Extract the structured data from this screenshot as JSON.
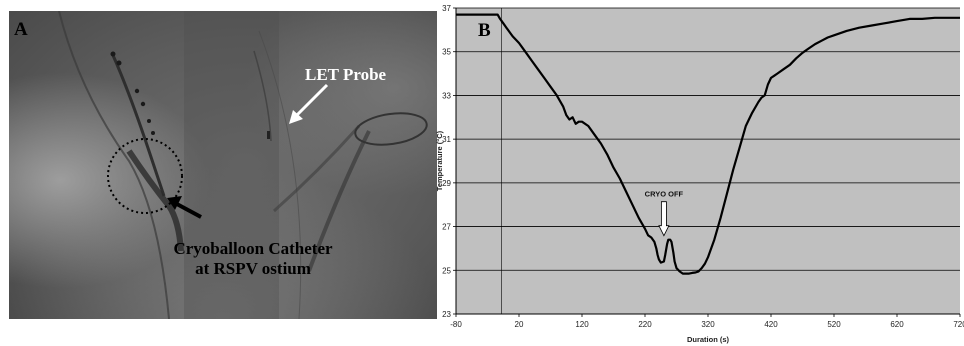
{
  "panel_a": {
    "letter": "A",
    "probe_label": "LET Probe",
    "catheter_label_line1": "Cryoballoon Catheter",
    "catheter_label_line2": "at RSPV ostium"
  },
  "chart_data": {
    "type": "line",
    "panel_letter": "B",
    "xlabel": "Duration (s)",
    "ylabel": "Temperature (°C)",
    "xlim": [
      -80,
      720
    ],
    "ylim": [
      23,
      37
    ],
    "x_ticks": [
      -80,
      20,
      120,
      220,
      320,
      420,
      520,
      620,
      720
    ],
    "y_ticks": [
      23,
      25,
      27,
      29,
      31,
      33,
      35,
      37
    ],
    "grid": "horizontal",
    "background": "#c0c0c0",
    "line_color": "#000000",
    "annotation": {
      "text": "CRYO OFF",
      "x": 250,
      "y": 26.4
    },
    "series": [
      {
        "x": [
          -80,
          -40,
          -20,
          -14,
          -10,
          -5,
          0,
          5,
          10,
          20,
          30,
          40,
          50,
          60,
          70,
          80,
          90,
          95,
          100,
          105,
          110,
          115,
          120,
          130,
          140,
          150,
          160,
          170,
          180,
          190,
          200,
          210,
          220,
          225,
          230,
          235,
          238,
          240,
          242,
          245,
          250,
          252,
          255,
          257,
          260,
          262,
          265,
          267,
          270,
          275,
          280,
          285,
          290,
          295,
          300,
          305,
          310,
          315,
          320,
          330,
          340,
          350,
          360,
          370,
          380,
          390,
          400,
          405,
          410,
          415,
          420,
          425,
          430,
          440,
          450,
          460,
          470,
          480,
          490,
          500,
          510,
          520,
          540,
          560,
          580,
          600,
          620,
          640,
          660,
          680,
          700,
          720
        ],
        "y": [
          36.7,
          36.7,
          36.7,
          36.7,
          36.5,
          36.3,
          36.1,
          35.9,
          35.7,
          35.4,
          35.0,
          34.6,
          34.2,
          33.8,
          33.4,
          33.0,
          32.5,
          32.1,
          31.9,
          32.0,
          31.7,
          31.8,
          31.8,
          31.6,
          31.2,
          30.8,
          30.3,
          29.7,
          29.2,
          28.6,
          28.0,
          27.4,
          26.9,
          26.6,
          26.5,
          26.3,
          26.0,
          25.7,
          25.5,
          25.35,
          25.4,
          25.7,
          26.2,
          26.4,
          26.4,
          26.3,
          25.8,
          25.4,
          25.1,
          24.95,
          24.85,
          24.85,
          24.85,
          24.88,
          24.9,
          24.95,
          25.1,
          25.3,
          25.6,
          26.4,
          27.4,
          28.5,
          29.6,
          30.6,
          31.6,
          32.2,
          32.7,
          32.9,
          33.0,
          33.5,
          33.8,
          33.9,
          34.0,
          34.2,
          34.4,
          34.7,
          34.95,
          35.15,
          35.35,
          35.5,
          35.65,
          35.75,
          35.95,
          36.1,
          36.2,
          36.3,
          36.4,
          36.5,
          36.5,
          36.55,
          36.55,
          36.55
        ]
      }
    ]
  }
}
